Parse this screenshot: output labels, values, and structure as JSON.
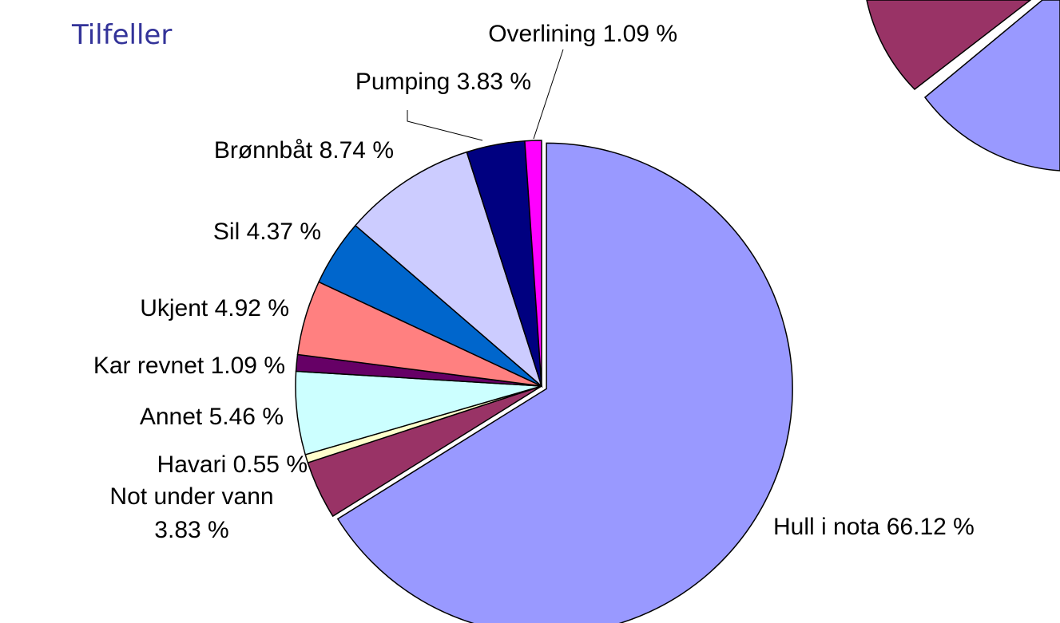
{
  "chart_data": {
    "type": "pie",
    "title": "Tilfeller",
    "categories": [
      "Hull i nota",
      "Not under vann",
      "Havari",
      "Annet",
      "Kar revnet",
      "Ukjent",
      "Sil",
      "Brønnbåt",
      "Pumping",
      "Overlining"
    ],
    "values": [
      66.12,
      3.83,
      0.55,
      5.46,
      1.09,
      4.92,
      4.37,
      8.74,
      3.83,
      1.09
    ],
    "value_labels": [
      "66.12 %",
      "3.83 %",
      "0.55 %",
      "5.46 %",
      "1.09 %",
      "4.92 %",
      "4.37 %",
      "8.74 %",
      "3.83 %",
      "1.09 %"
    ],
    "colors": [
      "#9999ff",
      "#993366",
      "#ffffcc",
      "#ccffff",
      "#660066",
      "#ff8080",
      "#0066cc",
      "#ccccff",
      "#000080",
      "#ff00ff"
    ]
  }
}
